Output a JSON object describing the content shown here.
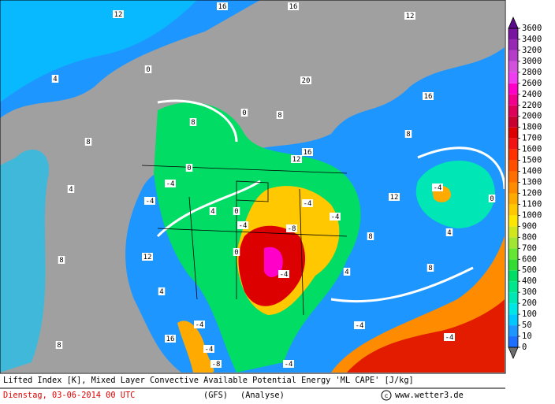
{
  "footer": {
    "title": "Lifted Index [K], Mixed Layer Convective Available Potential Energy 'ML CAPE' [J/kg]",
    "date": "Dienstag, 03-06-2014  00 UTC",
    "model": "(GFS)",
    "run": "(Analyse)",
    "source": "www.wetter3.de"
  },
  "colorbar": {
    "levels": [
      0,
      10,
      50,
      100,
      200,
      300,
      400,
      500,
      600,
      700,
      800,
      900,
      1000,
      1100,
      1200,
      1300,
      1400,
      1500,
      1600,
      1700,
      1800,
      2000,
      2200,
      2400,
      2600,
      2800,
      3000,
      3200,
      3400,
      3600
    ],
    "colors": [
      "#1e6eff",
      "#1e96ff",
      "#00c8ff",
      "#00e6e6",
      "#00e6b4",
      "#00e68c",
      "#00dc64",
      "#32dc32",
      "#64e632",
      "#a0e632",
      "#d2e61e",
      "#ffe600",
      "#ffc800",
      "#ffaa00",
      "#ff8c00",
      "#ff6e00",
      "#ff5000",
      "#ff3200",
      "#f01414",
      "#dc0000",
      "#c80032",
      "#dc005a",
      "#f0008c",
      "#ff00c8",
      "#f03cf0",
      "#d250dc",
      "#b43cc8",
      "#9628b4",
      "#7814a0",
      "#5a0a8c"
    ]
  },
  "map_labels": [
    "12",
    "16",
    "16",
    "12",
    "4",
    "8",
    "4",
    "8",
    "12",
    "4",
    "16",
    "8",
    "0",
    "8",
    "0",
    "8",
    "12",
    "16",
    "-4",
    "-4",
    "0",
    "4",
    "0",
    "-4",
    "-8",
    "-4",
    "-4",
    "-4",
    "0",
    "4",
    "-4",
    "-4",
    "-4",
    "0",
    "4",
    "8",
    "-4",
    "-4",
    "-8",
    "-4",
    "8",
    "12",
    "20",
    "16",
    "8"
  ]
}
